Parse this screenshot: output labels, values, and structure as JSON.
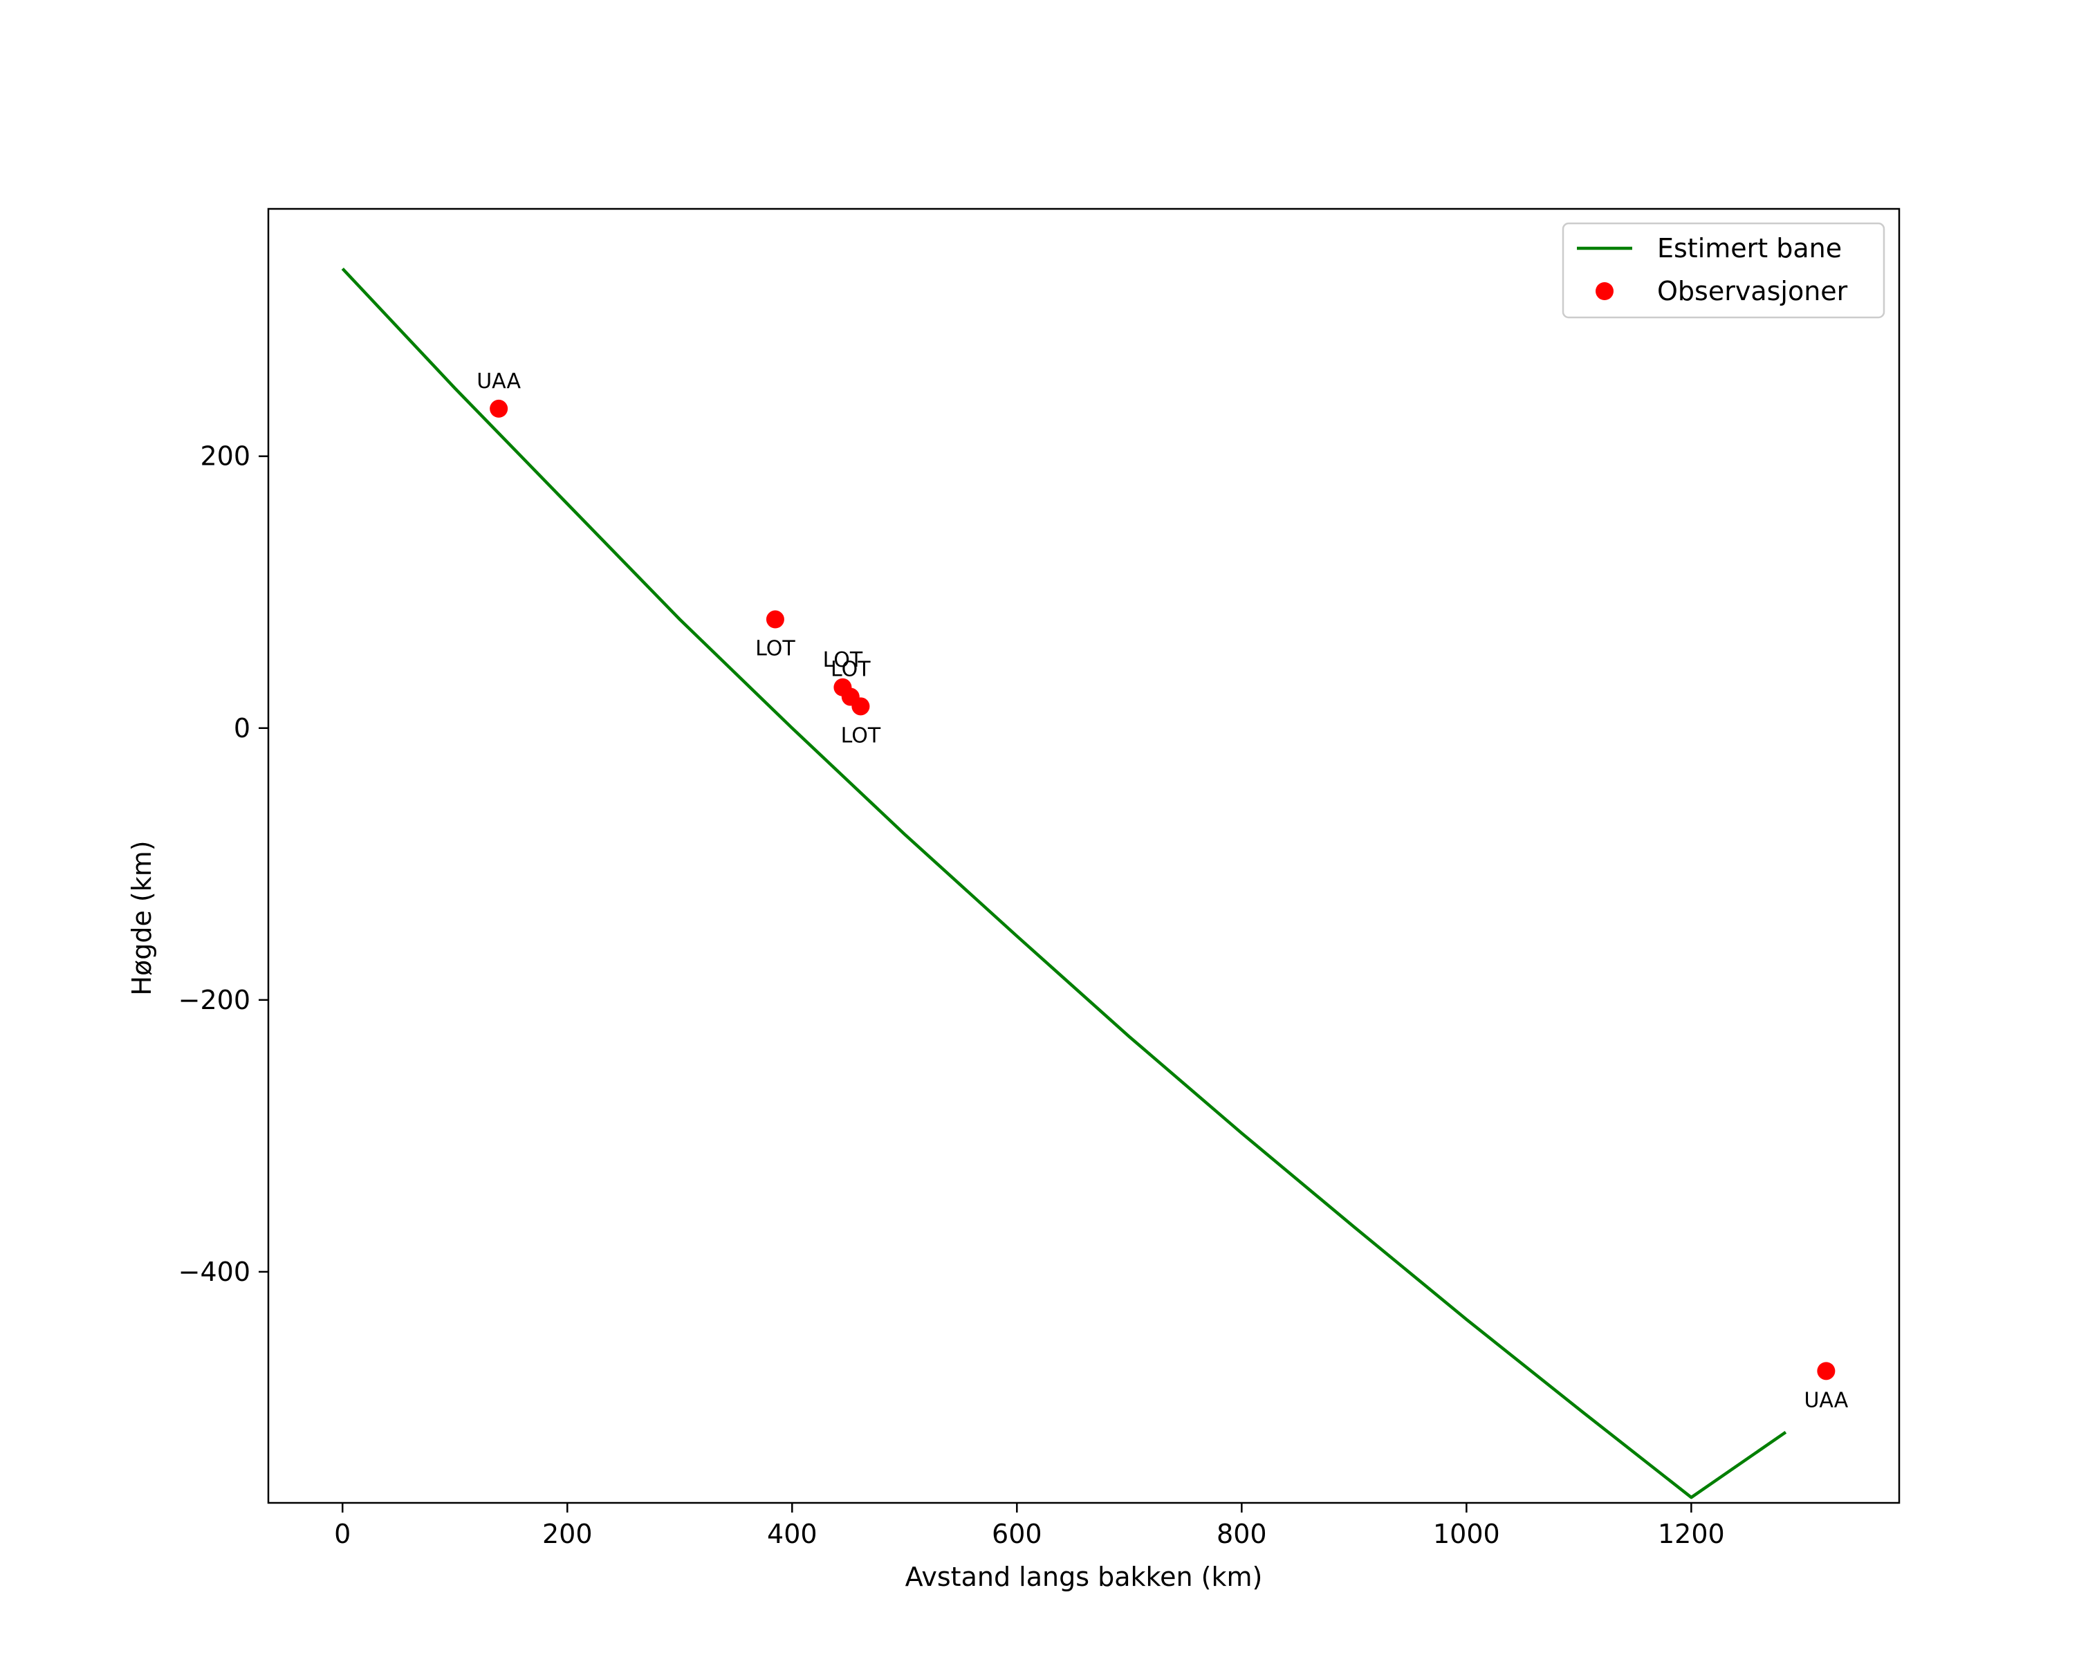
{
  "chart_data": {
    "type": "line",
    "title": "",
    "xlabel": "Avstand langs bakken (km)",
    "ylabel": "Høgde (km)",
    "xlim": [
      -66,
      1385
    ],
    "ylim": [
      -570,
      382
    ],
    "grid": false,
    "legend_position": "top-right",
    "x_ticks": [
      {
        "value": 0,
        "label": "0"
      },
      {
        "value": 200,
        "label": "200"
      },
      {
        "value": 400,
        "label": "400"
      },
      {
        "value": 600,
        "label": "600"
      },
      {
        "value": 800,
        "label": "800"
      },
      {
        "value": 1000,
        "label": "1000"
      },
      {
        "value": 1200,
        "label": "1200"
      }
    ],
    "y_ticks": [
      {
        "value": 200,
        "label": "200"
      },
      {
        "value": 0,
        "label": "0"
      },
      {
        "value": -200,
        "label": "−200"
      },
      {
        "value": -400,
        "label": "−400"
      }
    ],
    "series": [
      {
        "name": "Estimert bane",
        "kind": "line",
        "color": "#007f00",
        "points": [
          [
            0,
            338
          ],
          [
            100,
            250
          ],
          [
            200,
            165
          ],
          [
            300,
            80
          ],
          [
            400,
            0
          ],
          [
            500,
            -78
          ],
          [
            600,
            -153
          ],
          [
            700,
            -227
          ],
          [
            800,
            -298
          ],
          [
            900,
            -367
          ],
          [
            1000,
            -435
          ],
          [
            1100,
            -501
          ],
          [
            1200,
            -566
          ],
          [
            1284,
            -518
          ]
        ]
      },
      {
        "name": "Observasjoner",
        "kind": "scatter",
        "color": "#ff0000",
        "points": [
          {
            "x": 139,
            "y": 235,
            "label": "UAA",
            "label_pos": "above"
          },
          {
            "x": 385,
            "y": 80,
            "label": "LOT",
            "label_pos": "below"
          },
          {
            "x": 445,
            "y": 30,
            "label": "LOT",
            "label_pos": "above"
          },
          {
            "x": 452,
            "y": 23,
            "label": "LOT",
            "label_pos": "above"
          },
          {
            "x": 461,
            "y": 16,
            "label": "LOT",
            "label_pos": "below"
          },
          {
            "x": 1320,
            "y": -473,
            "label": "UAA",
            "label_pos": "below"
          }
        ]
      }
    ],
    "legend": [
      {
        "label": "Estimert bane",
        "kind": "line",
        "color": "#007f00"
      },
      {
        "label": "Observasjoner",
        "kind": "marker",
        "color": "#ff0000"
      }
    ]
  }
}
